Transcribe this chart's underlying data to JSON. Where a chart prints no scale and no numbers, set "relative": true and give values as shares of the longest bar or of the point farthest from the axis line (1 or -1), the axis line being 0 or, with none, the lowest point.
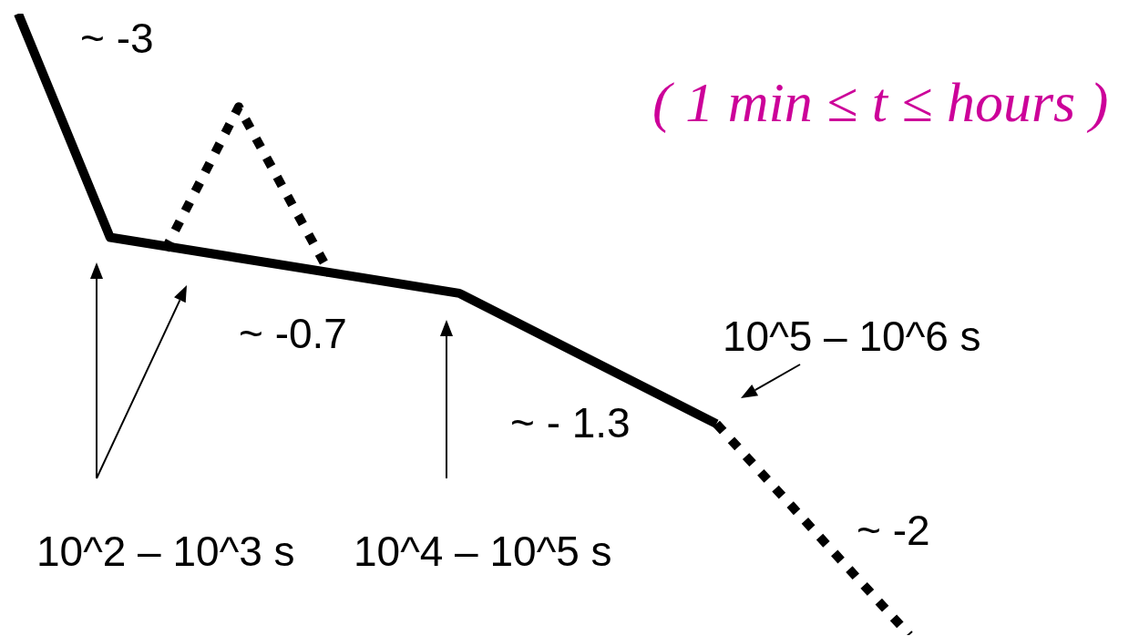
{
  "chart_data": {
    "type": "line",
    "relative": true,
    "categories": [
      null,
      null,
      null,
      null,
      null,
      null,
      null,
      null,
      null,
      null,
      null,
      null,
      null,
      null,
      null,
      null,
      null,
      null,
      null,
      null,
      null,
      null,
      null,
      null,
      null,
      null,
      null,
      null,
      null,
      null,
      null,
      null,
      null,
      null,
      null,
      null,
      null,
      null,
      null,
      null,
      null,
      null,
      null,
      null,
      null,
      null,
      null,
      null,
      null,
      null,
      null,
      null,
      null,
      null,
      null,
      null,
      null,
      null,
      null,
      null,
      null,
      null,
      null,
      null,
      null,
      null,
      null,
      null,
      null,
      null,
      null,
      null,
      null,
      null,
      null,
      null,
      null,
      null,
      null,
      null,
      null,
      null,
      null,
      null,
      null,
      null,
      null,
      null,
      null,
      null,
      null,
      null,
      null,
      null,
      null,
      null,
      null,
      null
    ],
    "series": [
      {
        "color": "#000000",
        "line_style": "solid",
        "values": [
          1,
          null,
          null,
          null,
          null,
          null,
          null,
          null,
          null,
          null,
          0.64,
          null,
          null,
          null,
          null,
          null,
          null,
          null,
          null,
          null,
          null,
          null,
          null,
          null,
          null,
          null,
          null,
          null,
          null,
          null,
          null,
          null,
          null,
          null,
          null,
          null,
          null,
          null,
          null,
          null,
          null,
          null,
          null,
          null,
          null,
          null,
          null,
          null,
          0.55,
          null,
          null,
          null,
          null,
          null,
          null,
          null,
          null,
          null,
          null,
          null,
          null,
          null,
          null,
          null,
          null,
          null,
          null,
          null,
          null,
          null,
          null,
          null,
          null,
          null,
          null,
          null,
          0.34,
          null,
          null,
          null,
          null,
          null,
          null,
          null,
          null,
          null,
          null,
          null,
          null,
          null,
          null,
          null,
          null,
          null,
          null,
          null,
          null,
          null
        ]
      },
      {
        "color": "#000000",
        "line_style": "dotted",
        "values": [
          null,
          null,
          null,
          null,
          null,
          null,
          null,
          null,
          null,
          null,
          null,
          null,
          null,
          null,
          null,
          null,
          0.62,
          null,
          null,
          null,
          null,
          null,
          null,
          null,
          0.85,
          null,
          null,
          null,
          null,
          null,
          null,
          null,
          null,
          null,
          0.58,
          null,
          null,
          null,
          null,
          null,
          null,
          null,
          null,
          null,
          null,
          null,
          null,
          null,
          null,
          null,
          null,
          null,
          null,
          null,
          null,
          null,
          null,
          null,
          null,
          null,
          null,
          null,
          null,
          null,
          null,
          null,
          null,
          null,
          null,
          null,
          null,
          null,
          null,
          null,
          null,
          null,
          null,
          null,
          null,
          null,
          null,
          null,
          null,
          null,
          null,
          null,
          null,
          null,
          null,
          null,
          null,
          null,
          null,
          null,
          null,
          null,
          null,
          null
        ]
      },
      {
        "color": "#000000",
        "line_style": "dotted",
        "values": [
          null,
          null,
          null,
          null,
          null,
          null,
          null,
          null,
          null,
          null,
          null,
          null,
          null,
          null,
          null,
          null,
          null,
          null,
          null,
          null,
          null,
          null,
          null,
          null,
          null,
          null,
          null,
          null,
          null,
          null,
          null,
          null,
          null,
          null,
          null,
          null,
          null,
          null,
          null,
          null,
          null,
          null,
          null,
          null,
          null,
          null,
          null,
          null,
          null,
          null,
          null,
          null,
          null,
          null,
          null,
          null,
          null,
          null,
          null,
          null,
          null,
          null,
          null,
          null,
          null,
          null,
          null,
          null,
          null,
          null,
          null,
          null,
          null,
          null,
          null,
          null,
          0.34,
          null,
          null,
          null,
          null,
          null,
          null,
          null,
          null,
          null,
          null,
          null,
          null,
          null,
          null,
          null,
          null,
          null,
          null,
          null,
          null,
          0
        ]
      }
    ],
    "annotations": [
      "~ -3",
      "( 1 min ≤ t ≤ hours )",
      "~ -0.7",
      "10^5 – 10^6 s",
      "~ - 1.3",
      "~ -2",
      "10^2 – 10^3 s",
      "10^4 – 10^5 s"
    ]
  }
}
